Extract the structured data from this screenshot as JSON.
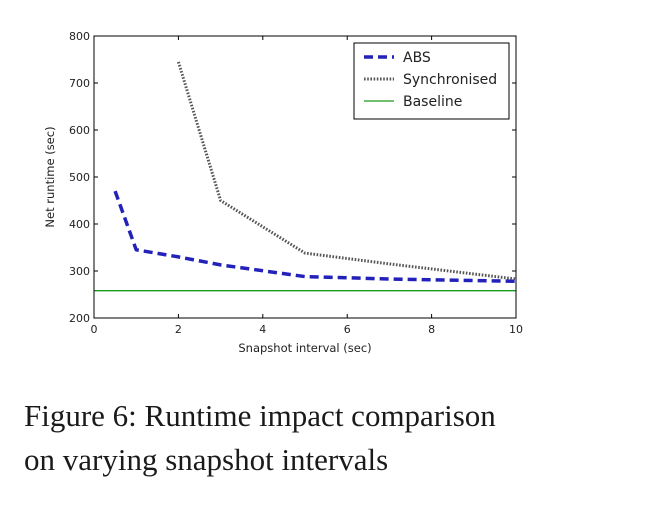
{
  "caption": {
    "line1": "Figure 6: Runtime impact comparison",
    "line2": "on varying snapshot intervals"
  },
  "chart_data": {
    "type": "line",
    "title": "",
    "xlabel": "Snapshot interval (sec)",
    "ylabel": "Net runtime (sec)",
    "xlim": [
      0,
      10
    ],
    "ylim": [
      200,
      800
    ],
    "xticks": [
      0,
      2,
      4,
      6,
      8,
      10
    ],
    "yticks": [
      200,
      300,
      400,
      500,
      600,
      700,
      800
    ],
    "grid": false,
    "legend_position": "top-right",
    "series": [
      {
        "name": "ABS",
        "style": "dashed",
        "color": "#2222bb",
        "x": [
          0.5,
          1,
          2,
          3,
          5,
          7,
          10
        ],
        "y": [
          470,
          345,
          330,
          313,
          288,
          283,
          278
        ]
      },
      {
        "name": "Synchronised",
        "style": "dotted",
        "color": "#555555",
        "x": [
          2,
          3,
          5,
          7,
          10
        ],
        "y": [
          745,
          450,
          338,
          315,
          283
        ]
      },
      {
        "name": "Baseline",
        "style": "solid",
        "color": "#1a9a1a",
        "x": [
          0,
          10
        ],
        "y": [
          258,
          258
        ]
      }
    ]
  }
}
